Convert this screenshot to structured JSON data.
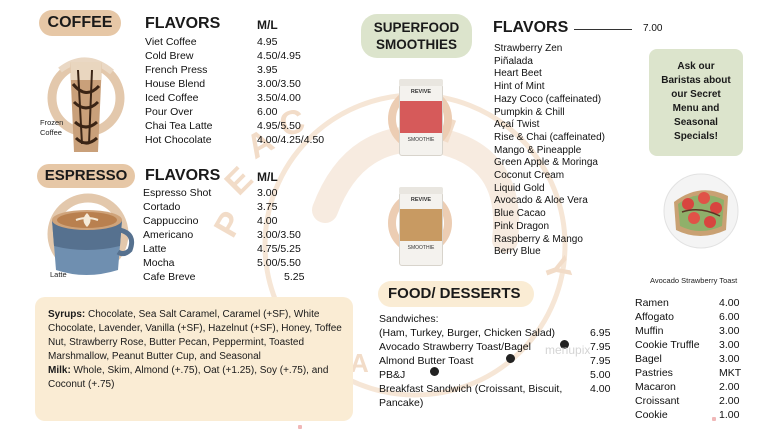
{
  "watermark": {
    "big_letters": [
      "P",
      "E",
      "A",
      "C",
      "H",
      "Y"
    ],
    "cafe_letters": [
      "C",
      "A",
      "F",
      "E"
    ]
  },
  "coffee": {
    "title": "COFFEE",
    "flavors_label": "FLAVORS",
    "price_label": "M/L",
    "image_caption": "Frozen Coffee",
    "items": [
      {
        "name": "Viet Coffee",
        "price": "4.95"
      },
      {
        "name": "Cold Brew",
        "price": "4.50/4.95"
      },
      {
        "name": "French Press",
        "price": "3.95"
      },
      {
        "name": "House Blend",
        "price": "3.00/3.50"
      },
      {
        "name": "Iced Coffee",
        "price": "3.50/4.00"
      },
      {
        "name": "Pour Over",
        "price": "6.00"
      },
      {
        "name": "Chai Tea Latte",
        "price": "4.95/5.50"
      },
      {
        "name": "Hot Chocolate",
        "price": "4.00/4.25/4.50"
      }
    ]
  },
  "espresso": {
    "title": "ESPRESSO",
    "flavors_label": "FLAVORS",
    "price_label": "M/L",
    "image_caption": "Latte",
    "items": [
      {
        "name": "Espresso Shot",
        "price": "3.00"
      },
      {
        "name": "Cortado",
        "price": "3.75"
      },
      {
        "name": "Cappuccino",
        "price": "4.00"
      },
      {
        "name": "Americano",
        "price": "3.00/3.50"
      },
      {
        "name": "Latte",
        "price": "4.75/5.25"
      },
      {
        "name": "Mocha",
        "price": "5.00/5.50"
      },
      {
        "name": "Cafe Breve",
        "price": "5.25"
      }
    ]
  },
  "syrups_box": {
    "syrups_label": "Syrups:",
    "syrups_text": " Chocolate, Sea Salt Caramel, Caramel (+SF), White Chocolate, Lavender, Vanilla (+SF), Hazelnut (+SF), Honey, Toffee Nut, Strawberry Rose, Butter Pecan, Peppermint, Toasted Marshmallow, Peanut Butter Cup, and Seasonal",
    "milk_label": "Milk:",
    "milk_text": " Whole, Skim, Almond (+.75), Oat (+1.25), Soy (+.75), and Coconut (+.75)"
  },
  "smoothies": {
    "title_line1": "SUPERFOOD",
    "title_line2": "SMOOTHIES",
    "flavors_label": "FLAVORS",
    "price": "7.00",
    "cup_brand": "REVIVE",
    "cup_label": "SMOOTHIE",
    "items": [
      "Strawberry Zen",
      "Piñalada",
      "Heart Beet",
      "Hint of Mint",
      "Hazy Coco (caffeinated)",
      "Pumpkin & Chill",
      "Açaí Twist",
      "Rise & Chai (caffeinated)",
      "Mango & Pineapple",
      "Green Apple & Moringa",
      "Coconut Cream",
      "Liquid Gold",
      "Avocado & Aloe Vera",
      "Blue Cacao",
      "Pink Dragon",
      "Raspberry & Mango",
      "Berry Blue"
    ]
  },
  "secret_menu": {
    "text": "Ask our Baristas about our Secret Menu and Seasonal Specials!"
  },
  "toast_caption": "Avocado Strawberry Toast",
  "food": {
    "title": "FOOD/ DESSERTS",
    "items": [
      {
        "name": "Sandwiches:",
        "price": ""
      },
      {
        "name": "(Ham, Turkey, Burger, Chicken Salad)",
        "price": "6.95"
      },
      {
        "name": "Avocado Strawberry Toast/Bagel",
        "price": "7.95"
      },
      {
        "name": "Almond Butter Toast",
        "price": "7.95"
      },
      {
        "name": "PB&J",
        "price": "5.00"
      },
      {
        "name": "Breakfast Sandwich (Croissant, Biscuit,",
        "price": "4.00"
      },
      {
        "name": "Pancake)",
        "price": ""
      }
    ]
  },
  "desserts": [
    {
      "name": "Ramen",
      "price": "4.00"
    },
    {
      "name": "Affogato",
      "price": "6.00"
    },
    {
      "name": "Muffin",
      "price": "3.00"
    },
    {
      "name": "Cookie Truffle",
      "price": "3.00"
    },
    {
      "name": "Bagel",
      "price": "3.00"
    },
    {
      "name": "Pastries",
      "price": "MKT"
    },
    {
      "name": "Macaron",
      "price": "2.00"
    },
    {
      "name": "Croissant",
      "price": "2.00"
    },
    {
      "name": "Cookie",
      "price": "1.00"
    }
  ],
  "menupix_watermark": "menupix",
  "colors": {
    "tan_pill": "#e6c7a6",
    "sage_pill": "#dce4cc",
    "cream_box": "#faecd4",
    "watermark": "#f2dcc8"
  }
}
